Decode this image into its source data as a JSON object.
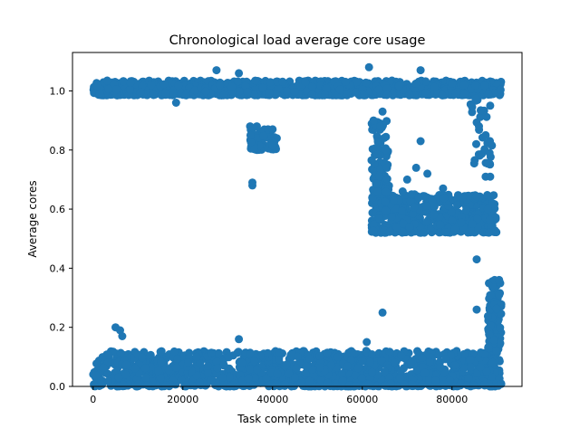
{
  "chart_data": {
    "type": "scatter",
    "title": "Chronological load average core usage",
    "xlabel": "Task complete in time",
    "ylabel": "Average cores",
    "xlim": [
      -4600,
      95600
    ],
    "ylim": [
      0,
      1.13
    ],
    "x_ticks": [
      0,
      20000,
      40000,
      60000,
      80000
    ],
    "x_tick_labels": [
      "0",
      "20000",
      "40000",
      "60000",
      "80000"
    ],
    "y_ticks": [
      0.0,
      0.2,
      0.4,
      0.6,
      0.8,
      1.0
    ],
    "y_tick_labels": [
      "0.0",
      "0.2",
      "0.4",
      "0.6",
      "0.8",
      "1.0"
    ],
    "grid": false,
    "legend": "none",
    "marker_color": "#1f77b4",
    "clusters": [
      {
        "x_range": [
          0,
          91000
        ],
        "y_range": [
          0.0,
          0.12
        ],
        "count": 1400
      },
      {
        "x_range": [
          0,
          91000
        ],
        "y_range": [
          0.985,
          1.035
        ],
        "count": 1100
      },
      {
        "x_range": [
          35000,
          41000
        ],
        "y_range": [
          0.8,
          0.87
        ],
        "count": 70
      },
      {
        "x_range": [
          62000,
          90000
        ],
        "y_range": [
          0.52,
          0.65
        ],
        "count": 500
      },
      {
        "x_range": [
          62000,
          66000
        ],
        "y_range": [
          0.65,
          0.9
        ],
        "count": 90
      },
      {
        "x_range": [
          84000,
          89000
        ],
        "y_range": [
          0.75,
          0.99
        ],
        "count": 30
      },
      {
        "x_range": [
          88000,
          91000
        ],
        "y_range": [
          0.12,
          0.36
        ],
        "count": 90
      }
    ],
    "points": [
      {
        "x": 35500,
        "y": 0.68
      },
      {
        "x": 35500,
        "y": 0.69
      },
      {
        "x": 35000,
        "y": 0.88
      },
      {
        "x": 36500,
        "y": 0.88
      },
      {
        "x": 39000,
        "y": 0.87
      },
      {
        "x": 40000,
        "y": 0.87
      },
      {
        "x": 5000,
        "y": 0.2
      },
      {
        "x": 6000,
        "y": 0.19
      },
      {
        "x": 6500,
        "y": 0.17
      },
      {
        "x": 18500,
        "y": 0.96
      },
      {
        "x": 27500,
        "y": 1.07
      },
      {
        "x": 32500,
        "y": 1.06
      },
      {
        "x": 32500,
        "y": 0.16
      },
      {
        "x": 61500,
        "y": 1.08
      },
      {
        "x": 73000,
        "y": 1.07
      },
      {
        "x": 61000,
        "y": 0.15
      },
      {
        "x": 64500,
        "y": 0.25
      },
      {
        "x": 73000,
        "y": 0.83
      },
      {
        "x": 72000,
        "y": 0.74
      },
      {
        "x": 70000,
        "y": 0.7
      },
      {
        "x": 74500,
        "y": 0.72
      },
      {
        "x": 69000,
        "y": 0.66
      },
      {
        "x": 71000,
        "y": 0.65
      },
      {
        "x": 65500,
        "y": 0.74
      },
      {
        "x": 78000,
        "y": 0.67
      },
      {
        "x": 85500,
        "y": 0.43
      },
      {
        "x": 85500,
        "y": 0.26
      },
      {
        "x": 86000,
        "y": 0.88
      },
      {
        "x": 87500,
        "y": 0.85
      },
      {
        "x": 87500,
        "y": 0.71
      },
      {
        "x": 88500,
        "y": 0.71
      },
      {
        "x": 88500,
        "y": 0.95
      },
      {
        "x": 89500,
        "y": 0.36
      },
      {
        "x": 90500,
        "y": 0.36
      },
      {
        "x": 90500,
        "y": 0.31
      },
      {
        "x": 64000,
        "y": 0.88
      },
      {
        "x": 64500,
        "y": 0.93
      },
      {
        "x": 62500,
        "y": 0.9
      },
      {
        "x": 88000,
        "y": 0.6
      },
      {
        "x": 84500,
        "y": 0.55
      },
      {
        "x": 65000,
        "y": 0.05
      },
      {
        "x": 45000,
        "y": 0.03
      }
    ]
  }
}
